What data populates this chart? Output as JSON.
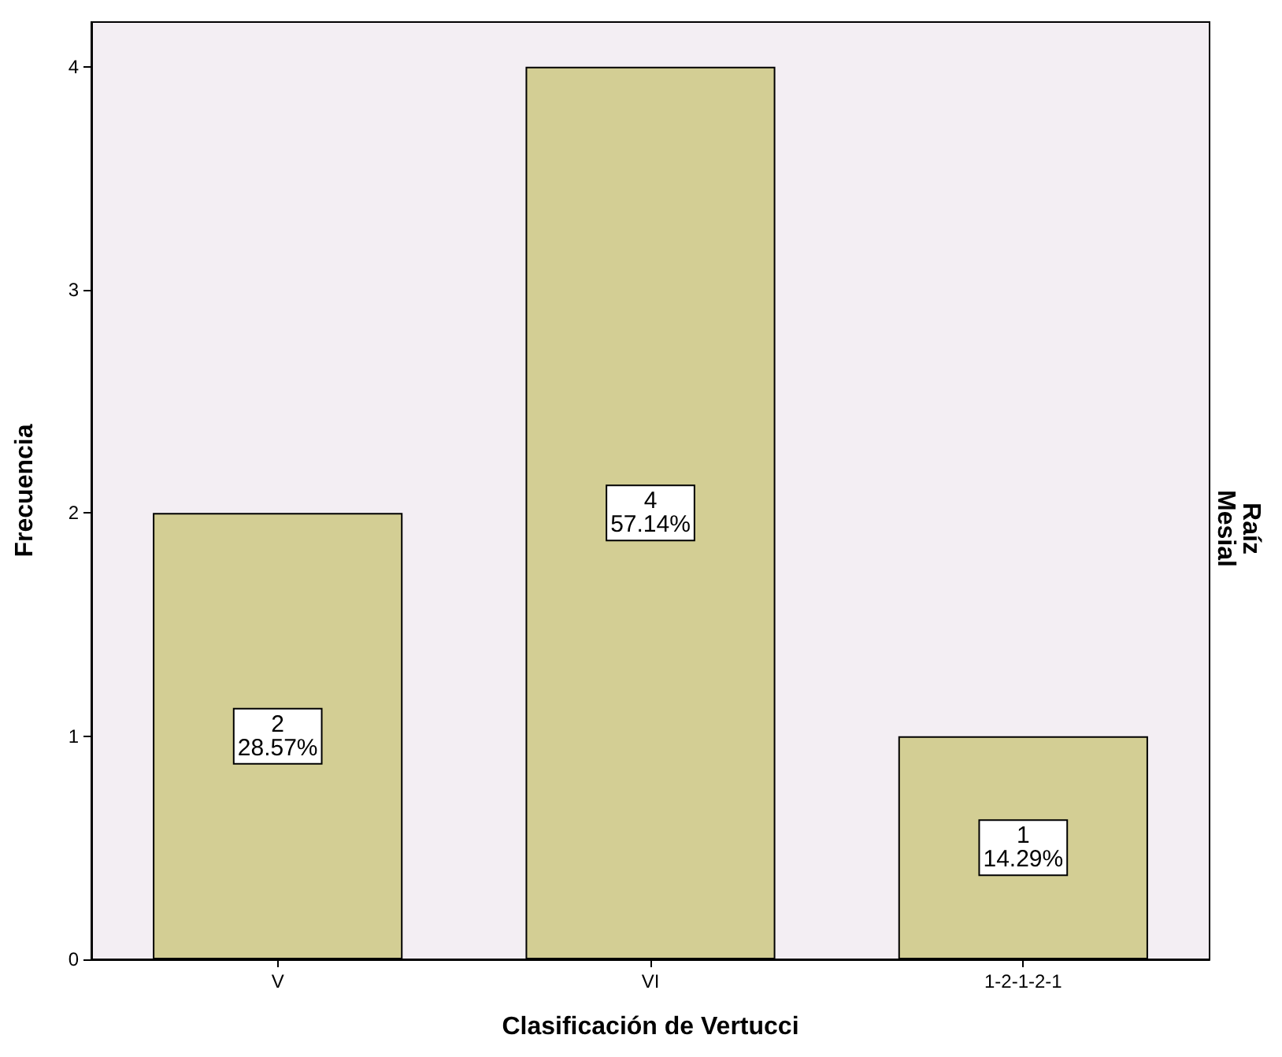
{
  "chart_data": {
    "type": "bar",
    "xlabel": "Clasificación de Vertucci",
    "ylabel": "Frecuencia",
    "annotations": [
      "Raíz\nMesial"
    ],
    "categories": [
      "V",
      "VI",
      "1-2-1-2-1"
    ],
    "values": [
      2,
      4,
      1
    ],
    "color": "#d3ce94",
    "value_labels": [
      "2\n28.57%",
      "4\n57.14%",
      "1\n14.29%"
    ],
    "ylim": [
      0,
      4.2
    ],
    "yticks": [
      0,
      1,
      2,
      3,
      4
    ],
    "grid": false
  }
}
